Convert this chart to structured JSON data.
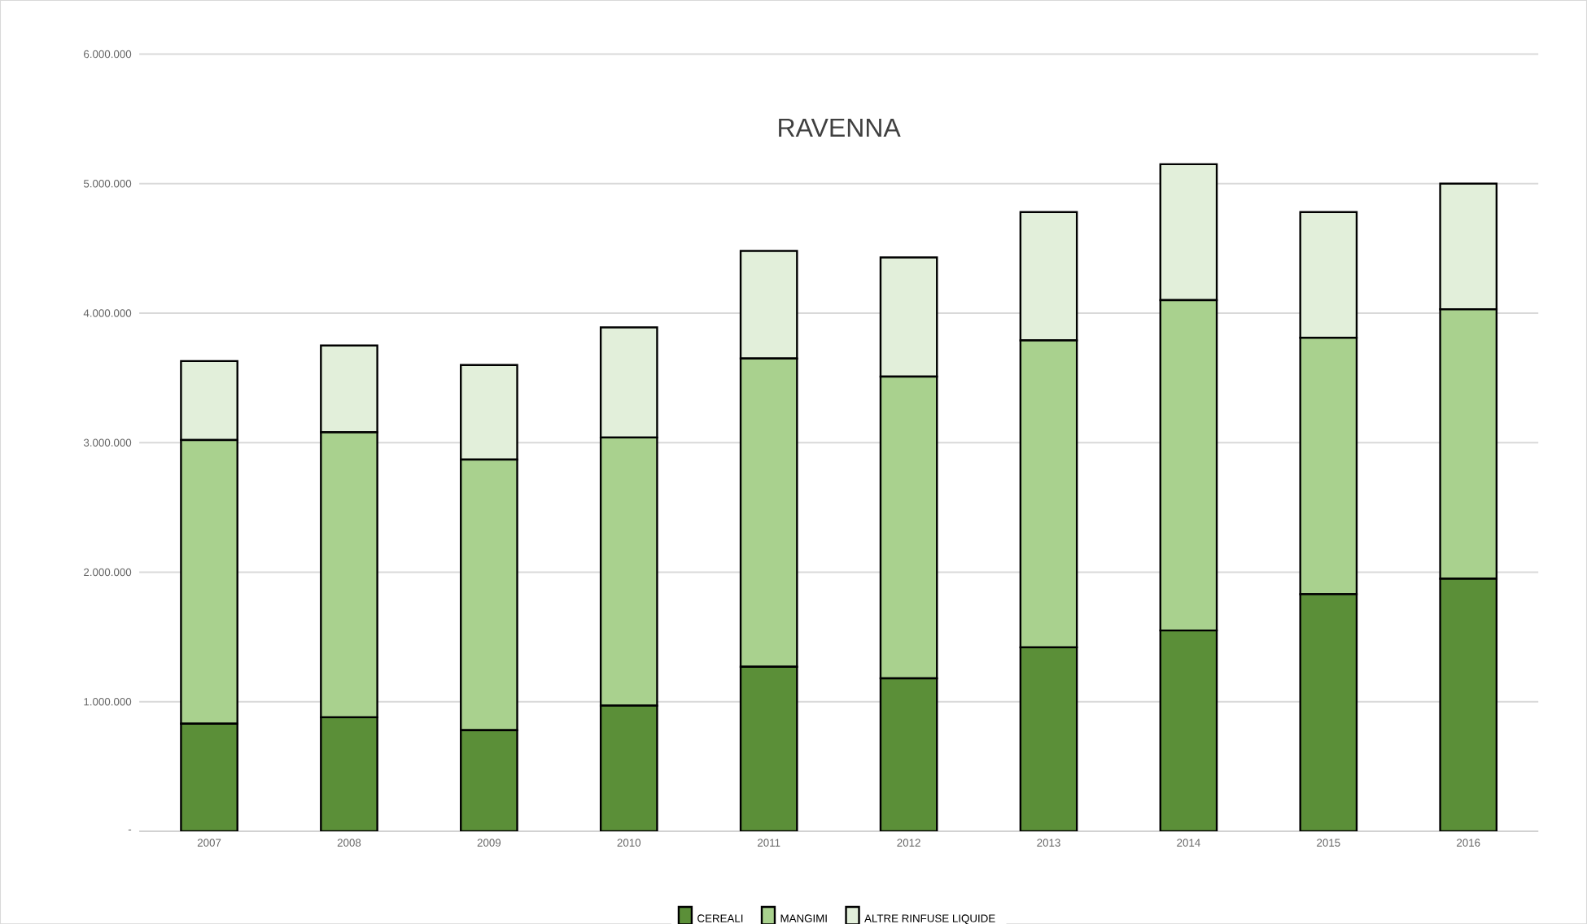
{
  "chart_data": {
    "type": "bar",
    "title": "RAVENNA",
    "stacked": true,
    "categories": [
      "2007",
      "2008",
      "2009",
      "2010",
      "2011",
      "2012",
      "2013",
      "2014",
      "2015",
      "2016"
    ],
    "series": [
      {
        "name": "CEREALI",
        "color": "#5b8f38",
        "values": [
          830000,
          880000,
          780000,
          970000,
          1270000,
          1180000,
          1420000,
          1550000,
          1830000,
          1950000
        ]
      },
      {
        "name": "MANGIMI",
        "color": "#a9d18e",
        "values": [
          2190000,
          2200000,
          2090000,
          2070000,
          2380000,
          2330000,
          2370000,
          2550000,
          1980000,
          2080000
        ]
      },
      {
        "name": "ALTRE RINFUSE LIQUIDE",
        "color": "#e2efda",
        "values": [
          610000,
          670000,
          730000,
          850000,
          830000,
          920000,
          990000,
          1050000,
          970000,
          970000
        ]
      }
    ],
    "ylim": [
      0,
      6000000
    ],
    "yticks": [
      {
        "value": 0,
        "label": "-"
      },
      {
        "value": 1000000,
        "label": "1.000.000"
      },
      {
        "value": 2000000,
        "label": "2.000.000"
      },
      {
        "value": 3000000,
        "label": "3.000.000"
      },
      {
        "value": 4000000,
        "label": "4.000.000"
      },
      {
        "value": 5000000,
        "label": "5.000.000"
      },
      {
        "value": 6000000,
        "label": "6.000.000"
      }
    ],
    "grid": "y",
    "legend": "bottom"
  }
}
